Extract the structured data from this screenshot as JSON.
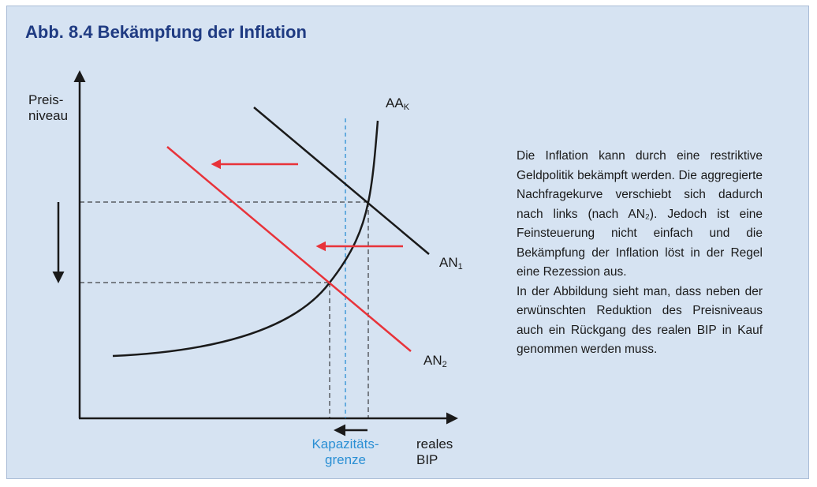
{
  "title": "Abb. 8.4  Bekämpfung der Inflation",
  "axes": {
    "y_label_line1": "Preis-",
    "y_label_line2": "niveau",
    "x_label_line1": "reales",
    "x_label_line2": "BIP"
  },
  "curves": {
    "aa": {
      "name": "AA",
      "subscript": "K"
    },
    "an1": {
      "name": "AN",
      "subscript": "1"
    },
    "an2": {
      "name": "AN",
      "subscript": "2"
    }
  },
  "capacity": {
    "line1": "Kapazitäts-",
    "line2": "grenze"
  },
  "description": {
    "para1": "Die Inflation kann durch eine restriktive Geldpolitik bekämpft werden. Die aggregierte Nachfragekurve verschiebt sich dadurch nach links (nach AN₂). Jedoch ist eine Feinsteuerung nicht einfach und die Bekämpfung der Inflation löst in der Regel eine Rezession aus.",
    "para2": "In der Abbildung sieht man, dass neben der erwünschten Reduktion des Preisniveaus auch ein Rückgang des realen BIP in Kauf genommen werden muss."
  },
  "colors": {
    "background": "#d6e3f2",
    "title": "#1f3b82",
    "demand_shift": "#e8333a",
    "capacity": "#2a8fd4",
    "curve": "#1a1a1a"
  }
}
